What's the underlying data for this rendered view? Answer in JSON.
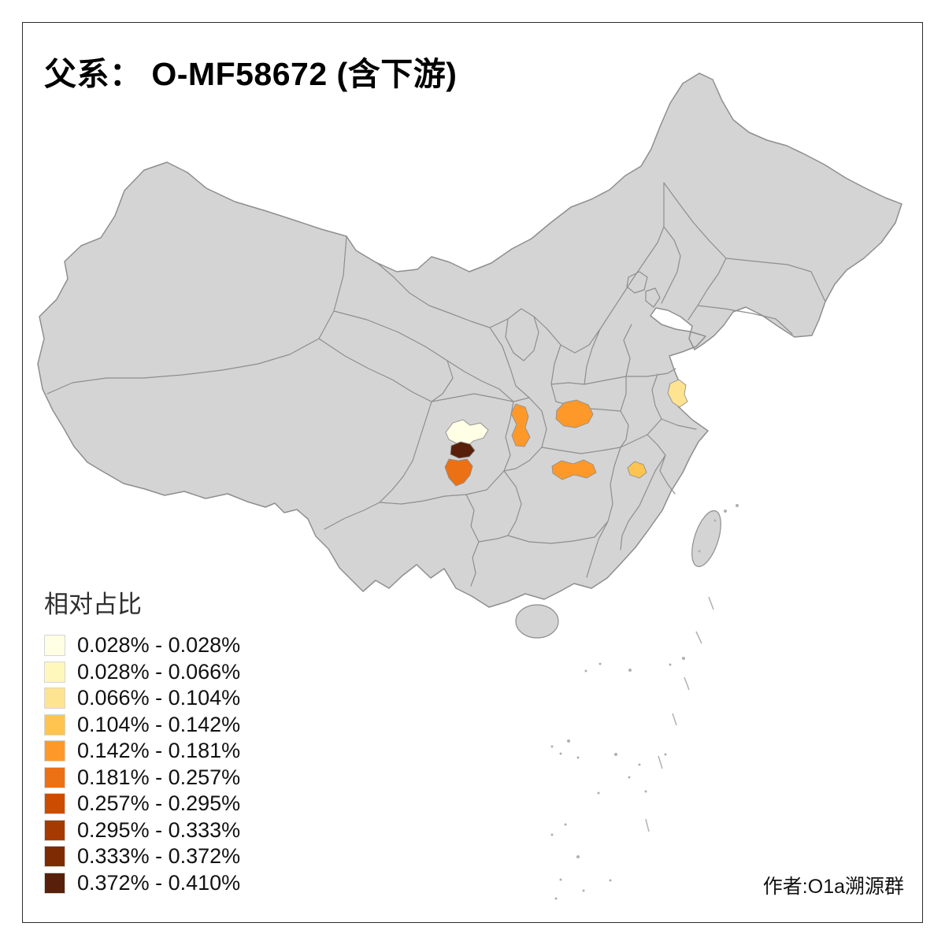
{
  "title": "父系： O-MF58672 (含下游)",
  "attribution": "作者:O1a溯源群",
  "legend": {
    "title": "相对占比",
    "items": [
      {
        "range": "0.028% - 0.028%",
        "color": "#FFFFE5"
      },
      {
        "range": "0.028% - 0.066%",
        "color": "#FFF7BC"
      },
      {
        "range": "0.066% - 0.104%",
        "color": "#FEE391"
      },
      {
        "range": "0.104% - 0.142%",
        "color": "#FEC44F"
      },
      {
        "range": "0.142% - 0.181%",
        "color": "#FE9929"
      },
      {
        "range": "0.181% - 0.257%",
        "color": "#EC7014"
      },
      {
        "range": "0.257% - 0.295%",
        "color": "#CC4C02"
      },
      {
        "range": "0.295% - 0.333%",
        "color": "#A53A03"
      },
      {
        "range": "0.333% - 0.372%",
        "color": "#7E2B04"
      },
      {
        "range": "0.372% - 0.410%",
        "color": "#58200A"
      }
    ]
  },
  "map": {
    "base_fill": "#d4d4d4",
    "border_color": "#8e8e8e",
    "sea_mark_color": "#b0b0b0",
    "regions": [
      {
        "id": "region-chengdu-area",
        "color": "#FFFFE5"
      },
      {
        "id": "region-dark-brown",
        "color": "#58200A"
      },
      {
        "id": "region-deep-orange",
        "color": "#EC7014"
      },
      {
        "id": "region-vertical-orange",
        "color": "#FE9929"
      },
      {
        "id": "region-north-orange",
        "color": "#FE9929"
      },
      {
        "id": "region-south-orange",
        "color": "#FE9929"
      },
      {
        "id": "region-light-orange",
        "color": "#FEC44F"
      },
      {
        "id": "region-pale-yellow",
        "color": "#FEE391"
      }
    ]
  }
}
